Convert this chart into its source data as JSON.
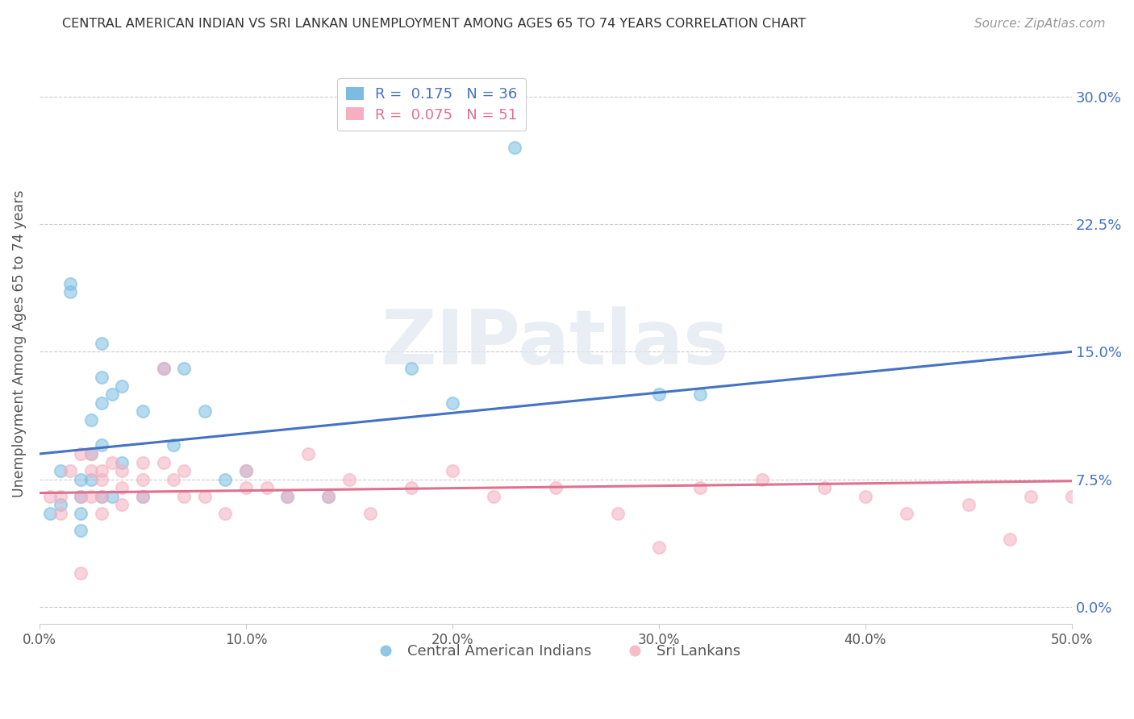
{
  "title": "CENTRAL AMERICAN INDIAN VS SRI LANKAN UNEMPLOYMENT AMONG AGES 65 TO 74 YEARS CORRELATION CHART",
  "source": "Source: ZipAtlas.com",
  "ylabel": "Unemployment Among Ages 65 to 74 years",
  "xlim": [
    0.0,
    0.5
  ],
  "ylim": [
    -0.01,
    0.32
  ],
  "xticks": [
    0.0,
    0.1,
    0.2,
    0.3,
    0.4,
    0.5
  ],
  "yticks": [
    0.0,
    0.075,
    0.15,
    0.225,
    0.3
  ],
  "xticklabels": [
    "0.0%",
    "10.0%",
    "20.0%",
    "30.0%",
    "40.0%",
    "50.0%"
  ],
  "yticklabels_right": [
    "0.0%",
    "7.5%",
    "15.0%",
    "22.5%",
    "30.0%"
  ],
  "blue_R": 0.175,
  "blue_N": 36,
  "pink_R": 0.075,
  "pink_N": 51,
  "blue_color": "#7bbde0",
  "pink_color": "#f5afc0",
  "blue_line_color": "#4472c4",
  "pink_line_color": "#e07090",
  "right_label_color": "#4472c4",
  "watermark_text": "ZIPatlas",
  "legend_label_blue": "Central American Indians",
  "legend_label_pink": "Sri Lankans",
  "blue_scatter_x": [
    0.005,
    0.01,
    0.01,
    0.015,
    0.015,
    0.02,
    0.02,
    0.02,
    0.02,
    0.025,
    0.025,
    0.025,
    0.03,
    0.03,
    0.03,
    0.03,
    0.03,
    0.035,
    0.035,
    0.04,
    0.04,
    0.05,
    0.05,
    0.06,
    0.065,
    0.07,
    0.08,
    0.09,
    0.1,
    0.12,
    0.14,
    0.18,
    0.2,
    0.23,
    0.3,
    0.32
  ],
  "blue_scatter_y": [
    0.055,
    0.08,
    0.06,
    0.19,
    0.185,
    0.075,
    0.065,
    0.055,
    0.045,
    0.11,
    0.09,
    0.075,
    0.155,
    0.135,
    0.12,
    0.095,
    0.065,
    0.125,
    0.065,
    0.13,
    0.085,
    0.115,
    0.065,
    0.14,
    0.095,
    0.14,
    0.115,
    0.075,
    0.08,
    0.065,
    0.065,
    0.14,
    0.12,
    0.27,
    0.125,
    0.125
  ],
  "pink_scatter_x": [
    0.005,
    0.01,
    0.01,
    0.015,
    0.02,
    0.02,
    0.025,
    0.025,
    0.025,
    0.03,
    0.03,
    0.03,
    0.03,
    0.035,
    0.04,
    0.04,
    0.04,
    0.05,
    0.05,
    0.05,
    0.06,
    0.06,
    0.065,
    0.07,
    0.07,
    0.08,
    0.09,
    0.1,
    0.1,
    0.11,
    0.12,
    0.13,
    0.14,
    0.15,
    0.16,
    0.18,
    0.2,
    0.22,
    0.25,
    0.28,
    0.3,
    0.32,
    0.35,
    0.38,
    0.4,
    0.42,
    0.45,
    0.47,
    0.48,
    0.5,
    0.02
  ],
  "pink_scatter_y": [
    0.065,
    0.065,
    0.055,
    0.08,
    0.09,
    0.065,
    0.09,
    0.08,
    0.065,
    0.08,
    0.075,
    0.065,
    0.055,
    0.085,
    0.08,
    0.07,
    0.06,
    0.085,
    0.075,
    0.065,
    0.14,
    0.085,
    0.075,
    0.08,
    0.065,
    0.065,
    0.055,
    0.08,
    0.07,
    0.07,
    0.065,
    0.09,
    0.065,
    0.075,
    0.055,
    0.07,
    0.08,
    0.065,
    0.07,
    0.055,
    0.035,
    0.07,
    0.075,
    0.07,
    0.065,
    0.055,
    0.06,
    0.04,
    0.065,
    0.065,
    0.02
  ],
  "blue_line_y_intercept": 0.09,
  "blue_line_slope": 0.12,
  "pink_line_y_intercept": 0.067,
  "pink_line_slope": 0.014
}
